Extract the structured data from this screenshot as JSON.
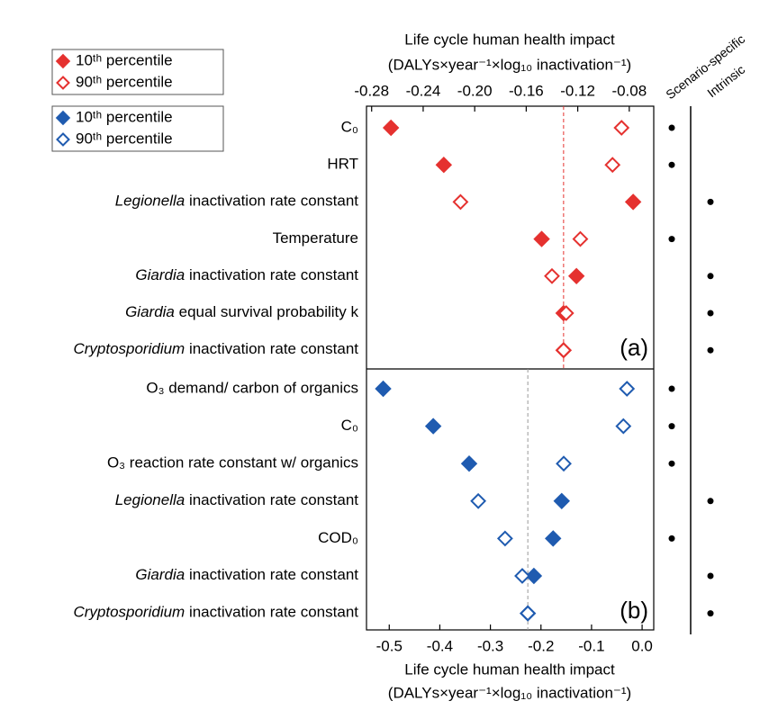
{
  "class_columns": [
    "Scenario-specific",
    "Intrinsic"
  ],
  "chart_data": [
    {
      "type": "dot",
      "xlabel": [
        "Life cycle human health impact",
        "(DALYs×year⁻¹×log₁₀ inactivation⁻¹)"
      ],
      "panel_label": "(a)",
      "categories": [
        "C₀",
        "HRT",
        "Legionella inactivation rate constant",
        "Temperature",
        "Giardia inactivation rate constant",
        "Giardia equal survival probability k",
        "Cryptosporidium inactivation rate constant"
      ],
      "italic_first_word": [
        false,
        false,
        true,
        false,
        true,
        true,
        true
      ],
      "classes": [
        0,
        0,
        1,
        0,
        1,
        1,
        1
      ],
      "series": [
        {
          "name": "10ᵗʰ percentile",
          "color": "#e5312f",
          "marker": "filled",
          "values": [
            -0.265,
            -0.224,
            -0.077,
            -0.148,
            -0.121,
            -0.131,
            -0.131
          ]
        },
        {
          "name": "90ᵗʰ percentile",
          "color": "#e5312f",
          "marker": "open",
          "values": [
            -0.086,
            -0.093,
            -0.211,
            -0.118,
            -0.14,
            -0.129,
            -0.131
          ]
        }
      ],
      "baseline": -0.131,
      "baseline_color": "#e5312f",
      "xlim": [
        -0.284,
        -0.061
      ],
      "xticks": [
        -0.28,
        -0.24,
        {
          "value": -0.2,
          "label": "-0.20"
        },
        -0.16,
        -0.12,
        -0.08
      ]
    },
    {
      "type": "dot",
      "xlabel": [
        "Life cycle human health impact",
        "(DALYs×year⁻¹×log₁₀ inactivation⁻¹)"
      ],
      "panel_label": "(b)",
      "categories": [
        "O₃ demand/ carbon of organics",
        "C₀",
        "O₃ reaction rate constant w/ organics",
        "Legionella inactivation rate constant",
        "COD₀",
        "Giardia inactivation rate constant",
        "Cryptosporidium inactivation rate constant"
      ],
      "italic_first_word": [
        false,
        false,
        false,
        true,
        false,
        true,
        true
      ],
      "classes": [
        0,
        0,
        0,
        1,
        0,
        1,
        1
      ],
      "series": [
        {
          "name": "10ᵗʰ percentile",
          "color": "#1f5bb0",
          "marker": "filled",
          "values": [
            -0.512,
            -0.413,
            -0.342,
            -0.159,
            -0.176,
            -0.214,
            -0.226
          ]
        },
        {
          "name": "90ᵗʰ percentile",
          "color": "#1f5bb0",
          "marker": "open",
          "values": [
            -0.03,
            -0.037,
            -0.155,
            -0.324,
            -0.271,
            -0.237,
            -0.226
          ]
        }
      ],
      "baseline": -0.226,
      "baseline_color": "#999999",
      "xlim": [
        -0.545,
        0.023
      ],
      "xticks": [
        -0.5,
        -0.4,
        -0.3,
        -0.2,
        -0.1,
        {
          "value": 0,
          "label": "0.0"
        }
      ]
    }
  ]
}
